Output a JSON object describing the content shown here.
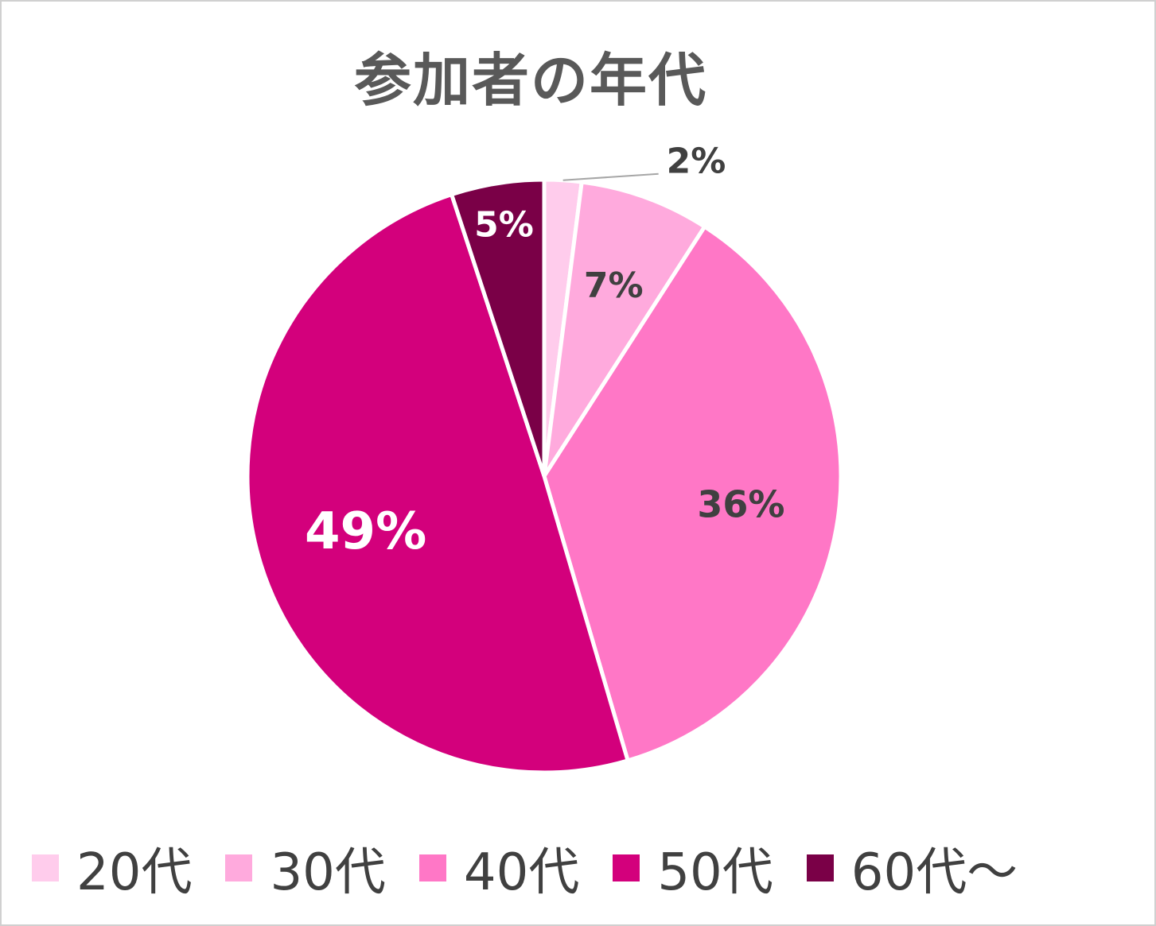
{
  "chart_data": {
    "type": "pie",
    "title": "参加者の年代",
    "categories": [
      "20代",
      "30代",
      "40代",
      "50代",
      "60代～"
    ],
    "values": [
      2,
      7,
      36,
      49,
      5
    ],
    "labels": [
      "2%",
      "7%",
      "36%",
      "49%",
      "5%"
    ],
    "colors": [
      "#ffccec",
      "#ffaadd",
      "#ff77c6",
      "#d3007c",
      "#7a0047"
    ],
    "label_colors": [
      "#404040",
      "#404040",
      "#404040",
      "#ffffff",
      "#ffffff"
    ],
    "legend_position": "bottom"
  }
}
